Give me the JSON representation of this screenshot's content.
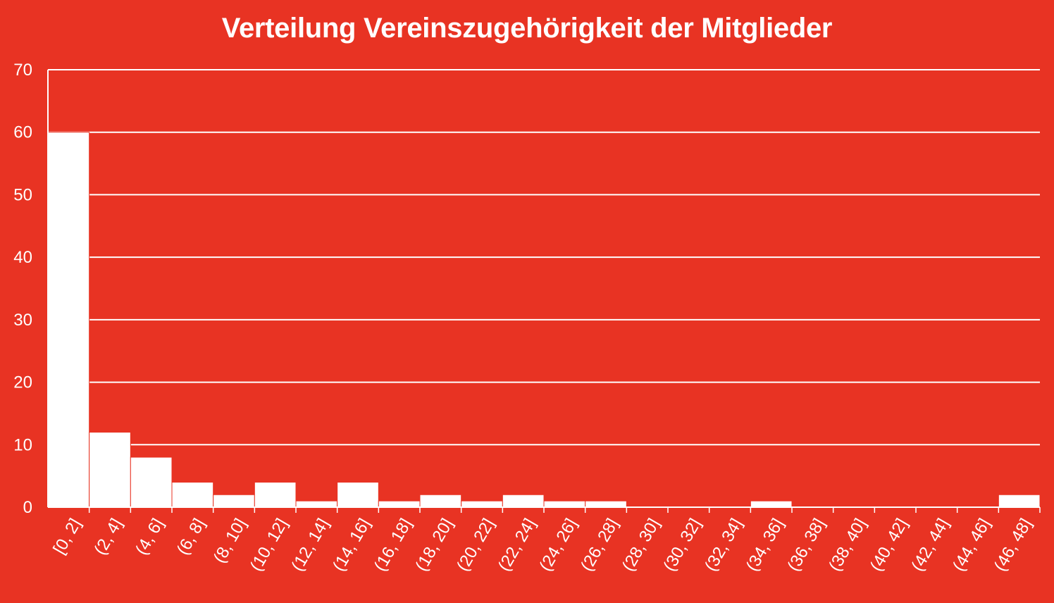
{
  "chart_data": {
    "type": "bar",
    "title": "Verteilung Vereinszugehörigkeit der Mitglieder",
    "xlabel": "",
    "ylabel": "",
    "categories": [
      "[0, 2]",
      "(2, 4]",
      "(4, 6]",
      "(6, 8]",
      "(8, 10]",
      "(10, 12]",
      "(12, 14]",
      "(14, 16]",
      "(16, 18]",
      "(18, 20]",
      "(20, 22]",
      "(22, 24]",
      "(24, 26]",
      "(26, 28]",
      "(28, 30]",
      "(30, 32]",
      "(32, 34]",
      "(34, 36]",
      "(36, 38]",
      "(38, 40]",
      "(40, 42]",
      "(42, 44]",
      "(44, 46]",
      "(46, 48]"
    ],
    "values": [
      60,
      12,
      8,
      4,
      2,
      4,
      1,
      4,
      1,
      2,
      1,
      2,
      1,
      1,
      0,
      0,
      0,
      1,
      0,
      0,
      0,
      0,
      0,
      2
    ],
    "ylim": [
      0,
      70
    ],
    "yticks": [
      0,
      10,
      20,
      30,
      40,
      50,
      60,
      70
    ],
    "grid": true,
    "legend": "none",
    "colors": {
      "background": "#e83323",
      "bars": "#ffffff",
      "grid": "#ffffff",
      "text": "#ffffff"
    }
  }
}
